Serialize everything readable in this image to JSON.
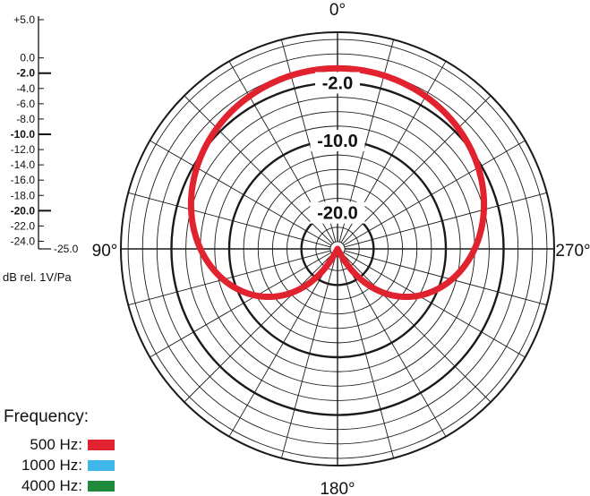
{
  "chart_data": {
    "type": "polar",
    "angle_labels": [
      {
        "angle": 0,
        "label": "0°"
      },
      {
        "angle": 90,
        "label": "90°"
      },
      {
        "angle": 180,
        "label": "180°"
      },
      {
        "angle": 270,
        "label": "270°"
      }
    ],
    "ring_labels": [
      "-2.0",
      "-10.0",
      "-20.0"
    ],
    "scale_ticks": [
      {
        "value": 5,
        "label": "+5.0",
        "bold": false
      },
      {
        "value": 0,
        "label": "0.0",
        "bold": false
      },
      {
        "value": -2,
        "label": "-2.0",
        "bold": true
      },
      {
        "value": -4,
        "label": "-4.0",
        "bold": false
      },
      {
        "value": -6,
        "label": "-6.0",
        "bold": false
      },
      {
        "value": -8,
        "label": "-8.0",
        "bold": false
      },
      {
        "value": -10,
        "label": "-10.0",
        "bold": true
      },
      {
        "value": -12,
        "label": "-12.0",
        "bold": false
      },
      {
        "value": -14,
        "label": "-14.0",
        "bold": false
      },
      {
        "value": -16,
        "label": "-16.0",
        "bold": false
      },
      {
        "value": -18,
        "label": "-18.0",
        "bold": false
      },
      {
        "value": -20,
        "label": "-20.0",
        "bold": true
      },
      {
        "value": -22,
        "label": "-22.0",
        "bold": false
      },
      {
        "value": -24,
        "label": "-24.0",
        "bold": false
      },
      {
        "value": -25,
        "label": "-25.0",
        "bold": false
      }
    ],
    "unit_label": "dB rel. 1V/Pa",
    "legend_title": "Frequency:",
    "series": [
      {
        "name": "500 Hz:",
        "color": "#e0232e",
        "pattern": "cardioid",
        "rear_null_db": -25
      },
      {
        "name": "1000 Hz:",
        "color": "#3fb5e8",
        "pattern": "cardioid",
        "rear_null_db": -25
      },
      {
        "name": "4000 Hz:",
        "color": "#1f8a3c",
        "pattern": "cardioid",
        "rear_null_db": -25
      }
    ],
    "range_db": [
      -25,
      5
    ]
  }
}
